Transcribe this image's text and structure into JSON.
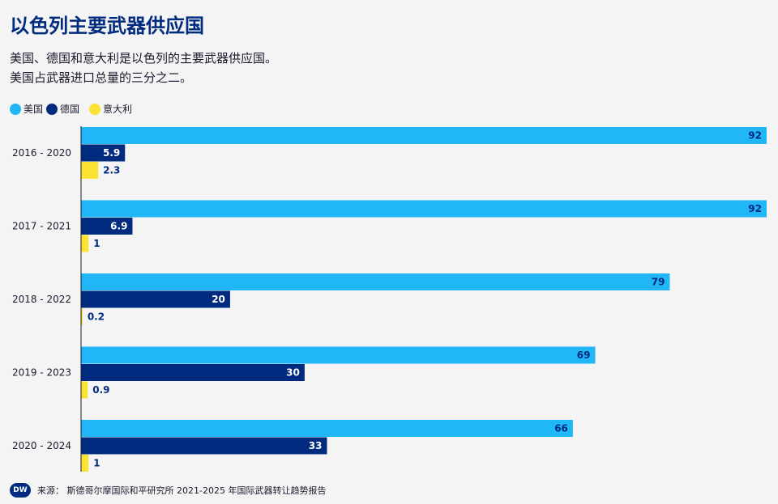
{
  "header": {
    "title": "以色列主要武器供应国",
    "subtitle_line1": "美国、德国和意大利是以色列的主要武器供应国。",
    "subtitle_line2": "美国占武器进口总量的三分之二。"
  },
  "footer": {
    "logo": "DW",
    "source": "来源： 斯德哥尔摩国际和平研究所 2021-2025 年国际武器转让趋势报告"
  },
  "chart_data": {
    "type": "bar",
    "orientation": "horizontal",
    "categories": [
      "2016 - 2020",
      "2017 - 2021",
      "2018 - 2022",
      "2019 - 2023",
      "2020 - 2024"
    ],
    "series": [
      {
        "name": "美国",
        "color": "#21b6f6",
        "values": [
          92,
          92,
          79,
          69,
          66
        ]
      },
      {
        "name": "德国",
        "color": "#002b7f",
        "values": [
          5.9,
          6.9,
          20,
          30,
          33
        ]
      },
      {
        "name": "意大利",
        "color": "#fbe233",
        "values": [
          2.3,
          1,
          0.2,
          0.9,
          1
        ]
      }
    ],
    "xlim": [
      0,
      92
    ],
    "grid": false,
    "legend_position": "top-left"
  }
}
